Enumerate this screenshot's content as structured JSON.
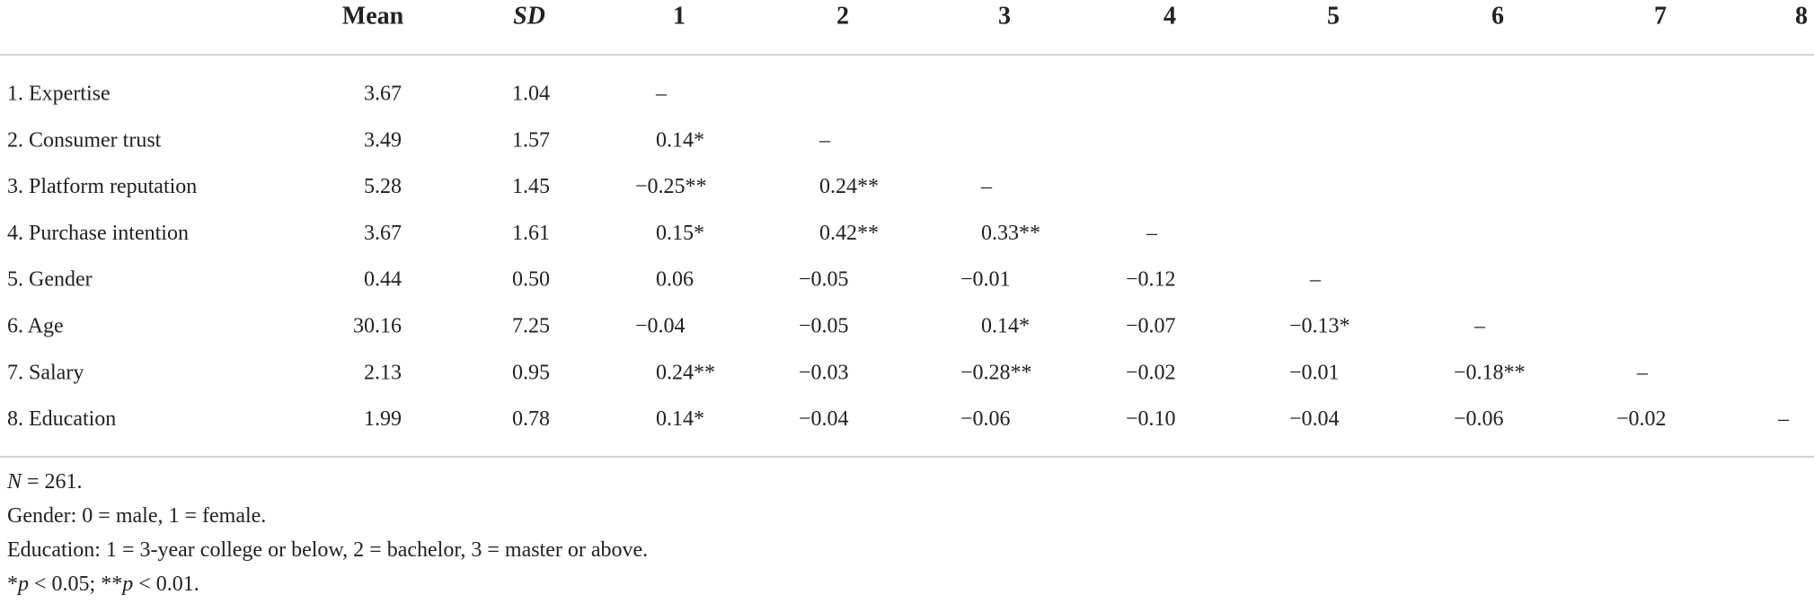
{
  "table": {
    "header": [
      "Mean",
      "SD",
      "1",
      "2",
      "3",
      "4",
      "5",
      "6",
      "7",
      "8"
    ],
    "rows": [
      [
        "1. Expertise",
        "3.67",
        "1.04",
        "–"
      ],
      [
        "2. Consumer trust",
        "3.49",
        "1.57",
        "0.14*",
        "–"
      ],
      [
        "3. Platform reputation",
        "5.28",
        "1.45",
        "−0.25**",
        "0.24**",
        "–"
      ],
      [
        "4. Purchase intention",
        "3.67",
        "1.61",
        "0.15*",
        "0.42**",
        "0.33**",
        "–"
      ],
      [
        "5. Gender",
        "0.44",
        "0.50",
        "0.06",
        "−0.05",
        "−0.01",
        "−0.12",
        "–"
      ],
      [
        "6. Age",
        "30.16",
        "7.25",
        "−0.04",
        "−0.05",
        "0.14*",
        "−0.07",
        "−0.13*",
        "–"
      ],
      [
        "7. Salary",
        "2.13",
        "0.95",
        "0.24**",
        "−0.03",
        "−0.28**",
        "−0.02",
        "−0.01",
        "−0.18**",
        "–"
      ],
      [
        "8. Education",
        "1.99",
        "0.78",
        "0.14*",
        "−0.04",
        "−0.06",
        "−0.10",
        "−0.04",
        "−0.06",
        "−0.02",
        "–"
      ]
    ]
  },
  "notes": [
    [
      {
        "text": "N",
        "italic": true
      },
      {
        "text": " = 261.",
        "italic": false
      }
    ],
    [
      {
        "text": "Gender: 0 = male, 1 = female.",
        "italic": false
      }
    ],
    [
      {
        "text": "Education: 1 = 3-year college or below, 2 = bachelor, 3 = master or above.",
        "italic": false
      }
    ],
    [
      {
        "text": "*",
        "italic": false
      },
      {
        "text": "p",
        "italic": true
      },
      {
        "text": " < 0.05; **",
        "italic": false
      },
      {
        "text": "p",
        "italic": true
      },
      {
        "text": " < 0.01.",
        "italic": false
      }
    ]
  ]
}
